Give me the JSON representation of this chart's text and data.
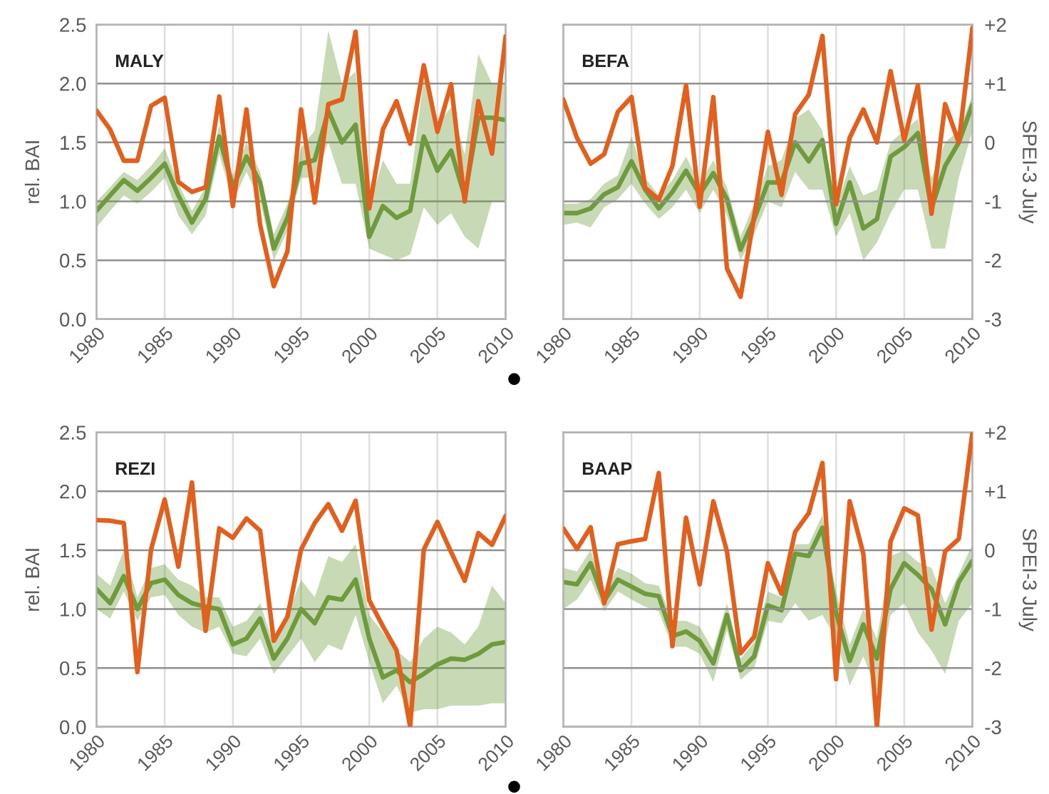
{
  "chart_data": [
    {
      "type": "line",
      "title": "MALY",
      "ylabel": "rel. BAI",
      "x": [
        1980,
        1981,
        1982,
        1983,
        1984,
        1985,
        1986,
        1987,
        1988,
        1989,
        1990,
        1991,
        1992,
        1993,
        1994,
        1995,
        1996,
        1997,
        1998,
        1999,
        2000,
        2001,
        2002,
        2003,
        2004,
        2005,
        2006,
        2007,
        2008,
        2009,
        2010
      ],
      "xlim": [
        1980,
        2010
      ],
      "xticks": [
        1980,
        1985,
        1990,
        1995,
        2000,
        2005,
        2010
      ],
      "ylim": [
        0,
        2.5
      ],
      "yticks": [
        {
          "value": 0,
          "label": "0.0"
        },
        {
          "value": 0.5,
          "label": "0.5"
        },
        {
          "value": 1,
          "label": "1.0"
        },
        {
          "value": 1.5,
          "label": "1.5"
        },
        {
          "value": 2,
          "label": "2.0"
        },
        {
          "value": 2.5,
          "label": "2.5"
        }
      ],
      "y2lim": [
        -3,
        2
      ],
      "grid": true,
      "tick_labels": [
        "x",
        "y"
      ],
      "series": [
        {
          "color": "#6f9a3e",
          "values": [
            0.92,
            1.05,
            1.18,
            1.09,
            1.2,
            1.32,
            1.05,
            0.82,
            1.02,
            1.55,
            1.12,
            1.38,
            1.16,
            0.6,
            0.86,
            1.32,
            1.35,
            1.77,
            1.5,
            1.65,
            0.7,
            0.96,
            0.86,
            0.92,
            1.55,
            1.26,
            1.43,
            1.04,
            1.71,
            1.71,
            1.69
          ],
          "lower": [
            0.78,
            0.92,
            1.05,
            0.98,
            1.08,
            1.2,
            0.88,
            0.72,
            0.88,
            1.4,
            1.0,
            1.25,
            1.0,
            0.5,
            0.75,
            1.2,
            1.2,
            1.5,
            1.15,
            1.15,
            0.6,
            0.55,
            0.5,
            0.55,
            0.95,
            0.8,
            0.9,
            0.7,
            0.6,
            1.0,
            1.0
          ],
          "upper": [
            1.0,
            1.12,
            1.25,
            1.18,
            1.3,
            1.45,
            1.15,
            0.92,
            1.12,
            1.65,
            1.22,
            1.5,
            1.25,
            0.72,
            0.98,
            1.45,
            1.6,
            2.45,
            2.0,
            2.1,
            0.95,
            1.35,
            1.15,
            1.15,
            2.05,
            1.65,
            1.8,
            1.4,
            2.25,
            2.0,
            2.0
          ]
        },
        {
          "color": "#e2601e",
          "axis": "y2",
          "values": [
            0.54,
            0.22,
            -0.31,
            -0.31,
            0.62,
            0.76,
            -0.67,
            -0.84,
            -0.76,
            0.78,
            -1.08,
            0.56,
            -1.4,
            -2.44,
            -1.85,
            0.56,
            -1.02,
            0.65,
            0.73,
            1.88,
            -1.12,
            0.22,
            0.7,
            -0.02,
            1.31,
            0.18,
            0.99,
            -1.0,
            0.7,
            -0.19,
            1.8
          ]
        }
      ]
    },
    {
      "type": "line",
      "title": "BEFA",
      "y2label": "SPEI-3 July",
      "x": [
        1980,
        1981,
        1982,
        1983,
        1984,
        1985,
        1986,
        1987,
        1988,
        1989,
        1990,
        1991,
        1992,
        1993,
        1994,
        1995,
        1996,
        1997,
        1998,
        1999,
        2000,
        2001,
        2002,
        2003,
        2004,
        2005,
        2006,
        2007,
        2008,
        2009,
        2010
      ],
      "xlim": [
        1980,
        2010
      ],
      "xticks": [
        1980,
        1985,
        1990,
        1995,
        2000,
        2005,
        2010
      ],
      "ylim": [
        0,
        2.5
      ],
      "y2lim": [
        -3,
        2
      ],
      "y2ticks": [
        {
          "value": -3,
          "label": "-3"
        },
        {
          "value": -2,
          "label": "-2"
        },
        {
          "value": -1,
          "label": "-1"
        },
        {
          "value": 0,
          "label": "0"
        },
        {
          "value": 1,
          "label": "+1"
        },
        {
          "value": 2,
          "label": "+2"
        }
      ],
      "grid": true,
      "tick_labels": [
        "x",
        "y2"
      ],
      "series": [
        {
          "color": "#6f9a3e",
          "values": [
            0.9,
            0.9,
            0.94,
            1.06,
            1.12,
            1.34,
            1.1,
            0.94,
            1.08,
            1.26,
            1.06,
            1.24,
            1.02,
            0.59,
            0.85,
            1.16,
            1.16,
            1.5,
            1.34,
            1.52,
            0.81,
            1.16,
            0.77,
            0.85,
            1.38,
            1.46,
            1.58,
            0.94,
            1.3,
            1.5,
            1.82
          ],
          "lower": [
            0.8,
            0.82,
            0.78,
            0.95,
            1.02,
            1.15,
            0.98,
            0.85,
            0.95,
            1.1,
            0.9,
            1.1,
            0.88,
            0.5,
            0.72,
            1.0,
            0.95,
            1.25,
            1.1,
            1.1,
            0.7,
            0.9,
            0.5,
            0.65,
            0.9,
            1.1,
            1.1,
            0.6,
            0.6,
            1.2,
            1.6
          ],
          "upper": [
            0.98,
            0.98,
            1.02,
            1.15,
            1.22,
            1.55,
            1.2,
            1.05,
            1.18,
            1.38,
            1.15,
            1.35,
            1.12,
            0.7,
            0.98,
            1.3,
            1.35,
            1.7,
            1.78,
            1.6,
            0.95,
            1.3,
            1.05,
            1.1,
            1.5,
            1.6,
            1.7,
            1.2,
            1.5,
            1.6,
            1.9
          ]
        },
        {
          "color": "#e2601e",
          "axis": "y2",
          "values": [
            0.73,
            0.08,
            -0.36,
            -0.2,
            0.52,
            0.77,
            -0.77,
            -0.97,
            -0.4,
            0.97,
            -1.09,
            0.77,
            -2.14,
            -2.62,
            -1.25,
            0.18,
            -0.89,
            0.48,
            0.81,
            1.81,
            -1.05,
            0.08,
            0.56,
            0.0,
            1.21,
            0.04,
            0.97,
            -1.21,
            0.65,
            0.0,
            1.94
          ]
        }
      ]
    },
    {
      "type": "line",
      "title": "REZI",
      "ylabel": "rel. BAI",
      "x": [
        1980,
        1981,
        1982,
        1983,
        1984,
        1985,
        1986,
        1987,
        1988,
        1989,
        1990,
        1991,
        1992,
        1993,
        1994,
        1995,
        1996,
        1997,
        1998,
        1999,
        2000,
        2001,
        2002,
        2003,
        2004,
        2005,
        2006,
        2007,
        2008,
        2009,
        2010
      ],
      "xlim": [
        1980,
        2010
      ],
      "xticks": [
        1980,
        1985,
        1990,
        1995,
        2000,
        2005,
        2010
      ],
      "ylim": [
        0,
        2.5
      ],
      "yticks": [
        {
          "value": 0,
          "label": "0.0"
        },
        {
          "value": 0.5,
          "label": "0.5"
        },
        {
          "value": 1,
          "label": "1.0"
        },
        {
          "value": 1.5,
          "label": "1.5"
        },
        {
          "value": 2,
          "label": "2.0"
        },
        {
          "value": 2.5,
          "label": "2.5"
        }
      ],
      "y2lim": [
        -3,
        2
      ],
      "grid": true,
      "tick_labels": [
        "x",
        "y"
      ],
      "series": [
        {
          "color": "#6f9a3e",
          "values": [
            1.17,
            1.05,
            1.28,
            1.0,
            1.22,
            1.25,
            1.12,
            1.05,
            1.02,
            1.0,
            0.7,
            0.75,
            0.92,
            0.58,
            0.75,
            1.0,
            0.88,
            1.1,
            1.08,
            1.25,
            0.75,
            0.42,
            0.48,
            0.38,
            0.45,
            0.53,
            0.58,
            0.57,
            0.62,
            0.7,
            0.72
          ],
          "lower": [
            1.0,
            0.92,
            1.15,
            0.9,
            1.1,
            1.12,
            0.95,
            0.85,
            0.8,
            0.85,
            0.62,
            0.6,
            0.75,
            0.45,
            0.6,
            0.75,
            0.55,
            0.7,
            0.65,
            0.95,
            0.55,
            0.2,
            0.35,
            0.12,
            0.15,
            0.15,
            0.18,
            0.18,
            0.18,
            0.2,
            0.2
          ],
          "upper": [
            1.3,
            1.2,
            1.5,
            1.1,
            1.35,
            1.38,
            1.25,
            1.2,
            1.1,
            1.1,
            0.85,
            0.9,
            1.05,
            0.7,
            0.95,
            1.25,
            1.1,
            1.45,
            1.4,
            1.55,
            0.95,
            0.8,
            0.65,
            0.55,
            0.75,
            0.85,
            0.8,
            0.7,
            0.85,
            1.2,
            1.05
          ]
        },
        {
          "color": "#e2601e",
          "axis": "y2",
          "values": [
            0.51,
            0.5,
            0.46,
            -2.07,
            0.01,
            0.86,
            -0.28,
            1.15,
            -1.37,
            0.37,
            0.21,
            0.54,
            0.33,
            -1.54,
            -1.13,
            0.01,
            0.46,
            0.78,
            0.33,
            0.84,
            -0.85,
            -1.29,
            -1.7,
            -3.0,
            0.01,
            0.48,
            -0.03,
            -0.52,
            0.29,
            0.09,
            0.58
          ]
        }
      ]
    },
    {
      "type": "line",
      "title": "BAAP",
      "y2label": "SPEI-3 July",
      "x": [
        1980,
        1981,
        1982,
        1983,
        1984,
        1985,
        1986,
        1987,
        1988,
        1989,
        1990,
        1991,
        1992,
        1993,
        1994,
        1995,
        1996,
        1997,
        1998,
        1999,
        2000,
        2001,
        2002,
        2003,
        2004,
        2005,
        2006,
        2007,
        2008,
        2009,
        2010
      ],
      "xlim": [
        1980,
        2010
      ],
      "xticks": [
        1980,
        1985,
        1990,
        1995,
        2000,
        2005,
        2010
      ],
      "ylim": [
        0,
        2.5
      ],
      "y2lim": [
        -3,
        2
      ],
      "y2ticks": [
        {
          "value": -3,
          "label": "-3"
        },
        {
          "value": -2,
          "label": "-2"
        },
        {
          "value": -1,
          "label": "-1"
        },
        {
          "value": 0,
          "label": "0"
        },
        {
          "value": 1,
          "label": "+1"
        },
        {
          "value": 2,
          "label": "+2"
        }
      ],
      "grid": true,
      "tick_labels": [
        "x",
        "y2"
      ],
      "series": [
        {
          "color": "#6f9a3e",
          "values": [
            1.23,
            1.21,
            1.39,
            1.07,
            1.25,
            1.19,
            1.13,
            1.11,
            0.77,
            0.81,
            0.73,
            0.54,
            0.95,
            0.48,
            0.6,
            1.03,
            0.99,
            1.47,
            1.45,
            1.69,
            0.97,
            0.56,
            0.87,
            0.58,
            1.17,
            1.39,
            1.29,
            1.17,
            0.87,
            1.23,
            1.41
          ],
          "lower": [
            1.0,
            1.08,
            1.25,
            0.98,
            1.15,
            1.08,
            1.02,
            0.98,
            0.68,
            0.68,
            0.62,
            0.38,
            0.82,
            0.4,
            0.5,
            0.9,
            0.88,
            1.05,
            0.9,
            0.95,
            0.75,
            0.35,
            0.6,
            0.3,
            0.95,
            1.05,
            0.8,
            0.65,
            0.45,
            0.9,
            1.05
          ],
          "upper": [
            1.35,
            1.32,
            1.5,
            1.15,
            1.35,
            1.3,
            1.22,
            1.2,
            0.9,
            0.9,
            0.85,
            0.65,
            1.05,
            0.58,
            0.72,
            1.15,
            1.1,
            1.55,
            1.55,
            1.8,
            1.15,
            0.7,
            1.0,
            0.75,
            1.45,
            1.5,
            1.4,
            1.35,
            1.05,
            1.3,
            1.55
          ]
        },
        {
          "color": "#e2601e",
          "axis": "y2",
          "values": [
            0.37,
            0.02,
            0.39,
            -0.9,
            0.1,
            0.15,
            0.19,
            1.31,
            -1.63,
            0.55,
            -0.58,
            0.83,
            -0.02,
            -1.75,
            -1.47,
            -0.22,
            -0.74,
            0.31,
            0.63,
            1.48,
            -2.19,
            0.83,
            -0.06,
            -3.0,
            0.15,
            0.71,
            0.59,
            -1.35,
            -0.02,
            0.19,
            2.0
          ]
        }
      ]
    }
  ]
}
